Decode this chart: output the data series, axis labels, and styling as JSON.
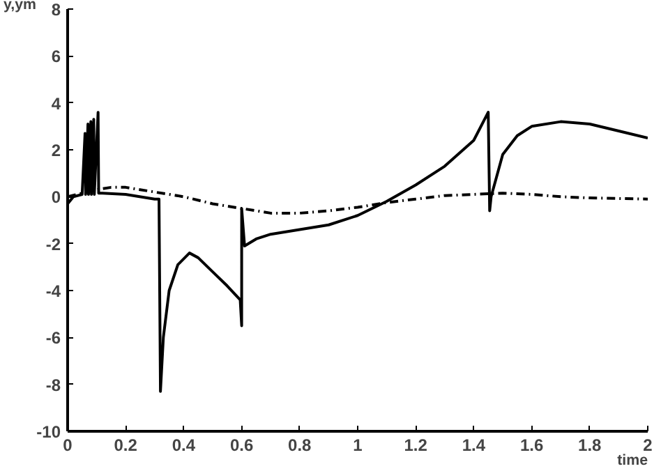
{
  "chart_data": {
    "type": "line",
    "xlabel": "time",
    "ylabel": "y,ym",
    "xlim": [
      0,
      2
    ],
    "ylim": [
      -10,
      8
    ],
    "xticks": [
      0,
      0.2,
      0.4,
      0.6,
      0.8,
      1,
      1.2,
      1.4,
      1.6,
      1.8,
      2
    ],
    "yticks": [
      -10,
      -8,
      -6,
      -4,
      -2,
      0,
      2,
      4,
      6,
      8
    ],
    "grid": false,
    "marker": "none",
    "series": [
      {
        "color": "#000000",
        "line_style": "solid",
        "x": [
          0,
          0.02,
          0.05,
          0.06,
          0.062,
          0.07,
          0.072,
          0.08,
          0.082,
          0.09,
          0.092,
          0.105,
          0.107,
          0.12,
          0.2,
          0.3,
          0.315,
          0.32,
          0.33,
          0.35,
          0.38,
          0.42,
          0.45,
          0.5,
          0.55,
          0.595,
          0.6,
          0.6,
          0.61,
          0.65,
          0.7,
          0.8,
          0.9,
          1.0,
          1.1,
          1.2,
          1.3,
          1.4,
          1.45,
          1.455,
          1.46,
          1.5,
          1.55,
          1.6,
          1.7,
          1.8,
          1.9,
          2.0
        ],
        "values": [
          -0.3,
          0.0,
          0.1,
          2.7,
          0.1,
          3.1,
          0.1,
          3.2,
          0.1,
          3.3,
          0.1,
          3.6,
          0.15,
          0.15,
          0.1,
          -0.1,
          -0.1,
          -8.3,
          -6,
          -4,
          -2.9,
          -2.4,
          -2.6,
          -3.2,
          -3.8,
          -4.4,
          -5.5,
          -0.5,
          -2.1,
          -1.8,
          -1.6,
          -1.4,
          -1.2,
          -0.8,
          -0.2,
          0.5,
          1.3,
          2.4,
          3.6,
          -0.6,
          0.0,
          1.8,
          2.6,
          3.0,
          3.2,
          3.1,
          2.8,
          2.5
        ]
      },
      {
        "color": "#000000",
        "line_style": "dashed",
        "x": [
          0,
          0.1,
          0.15,
          0.2,
          0.3,
          0.4,
          0.5,
          0.6,
          0.7,
          0.8,
          0.9,
          1.0,
          1.1,
          1.2,
          1.3,
          1.4,
          1.5,
          1.6,
          1.7,
          1.8,
          2.0
        ],
        "values": [
          0,
          0.3,
          0.4,
          0.4,
          0.2,
          0,
          -0.3,
          -0.5,
          -0.7,
          -0.7,
          -0.6,
          -0.45,
          -0.25,
          -0.1,
          0.05,
          0.1,
          0.15,
          0.1,
          0.0,
          -0.05,
          -0.1
        ]
      }
    ]
  }
}
